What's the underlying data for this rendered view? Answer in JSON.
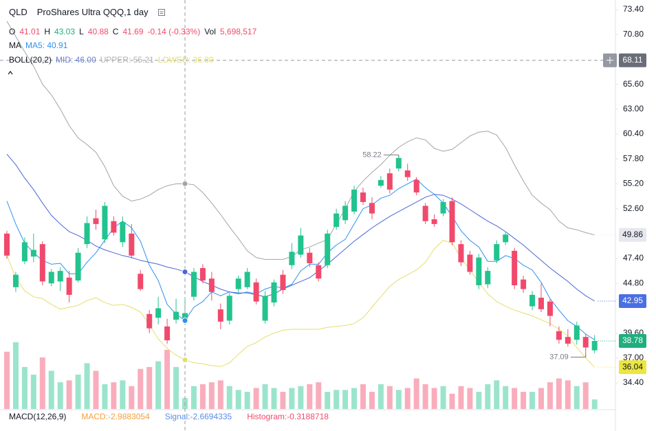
{
  "chart_data": {
    "type": "candlestick",
    "title": "QLD",
    "subtitle": "ProShares Ultra QQQ,1 day",
    "up_color": "#22c38e",
    "down_color": "#f1496b",
    "ylim": [
      31.67,
      74.41
    ],
    "yticks": [
      {
        "value": 73.4,
        "label": "73.40"
      },
      {
        "value": 70.8,
        "label": "70.80"
      },
      {
        "value": 65.6,
        "label": "65.60"
      },
      {
        "value": 63,
        "label": "63.00"
      },
      {
        "value": 60.4,
        "label": "60.40"
      },
      {
        "value": 57.8,
        "label": "57.80"
      },
      {
        "value": 55.2,
        "label": "55.20"
      },
      {
        "value": 52.6,
        "label": "52.60"
      },
      {
        "value": 47.4,
        "label": "47.40"
      },
      {
        "value": 44.8,
        "label": "44.80"
      },
      {
        "value": 39.6,
        "label": "39.60"
      },
      {
        "value": 37,
        "label": "37.00"
      },
      {
        "value": 34.4,
        "label": "34.40"
      }
    ],
    "open": [
      50.0,
      44.4,
      47.1,
      47.6,
      48.9,
      44.8,
      45.0,
      45.4,
      45.1,
      48.9,
      51.6,
      49.4,
      51.3,
      49.1,
      50.0,
      45.8,
      41.6,
      41.2,
      40.3,
      41.0,
      41.01,
      43.4,
      46.4,
      45.3,
      42.08,
      40.9,
      44.2,
      44.4,
      44.9,
      40.9,
      42.8,
      45.7,
      46.7,
      47.8,
      48.0,
      46.7,
      46.7,
      50.7,
      51.4,
      52.3,
      54.3,
      53.2,
      55.0,
      56.3,
      56.8,
      56.6,
      55.6,
      52.9,
      51.5,
      52.1,
      53.4,
      48.9,
      47.8,
      44.6,
      44.7,
      47.2,
      49.1,
      48.2,
      45.2,
      42.4,
      43.3,
      42.9,
      39.8,
      39.2,
      38.9,
      39.2,
      37.8
    ],
    "high": [
      50.3,
      46.0,
      49.6,
      50.0,
      49.2,
      46.3,
      46.5,
      46.1,
      48.5,
      51.8,
      52.5,
      53.3,
      51.8,
      51.8,
      51.0,
      46.2,
      42.0,
      43.4,
      41.1,
      43.2,
      43.03,
      46.4,
      46.8,
      46.0,
      42.7,
      43.8,
      45.6,
      46.4,
      45.3,
      44.0,
      45.2,
      46.2,
      49.0,
      50.6,
      48.5,
      47.0,
      50.4,
      52.6,
      53.4,
      55.0,
      54.8,
      53.8,
      56.0,
      56.8,
      58.22,
      57.3,
      55.9,
      53.2,
      52.0,
      53.6,
      53.8,
      49.3,
      48.2,
      47.9,
      46.5,
      49.3,
      50.2,
      48.5,
      45.6,
      44.0,
      44.8,
      43.2,
      40.3,
      40.0,
      40.8,
      39.5,
      39.4
    ],
    "low": [
      47.4,
      43.9,
      46.8,
      47.0,
      44.6,
      44.5,
      44.0,
      42.8,
      44.9,
      48.5,
      50.4,
      49.0,
      49.8,
      48.6,
      47.4,
      44.0,
      39.6,
      40.5,
      38.5,
      40.6,
      40.88,
      43.0,
      44.8,
      43.0,
      40.0,
      40.5,
      43.8,
      44.2,
      42.6,
      40.6,
      42.4,
      43.7,
      46.3,
      47.5,
      46.5,
      45.0,
      46.4,
      50.4,
      51.0,
      52.0,
      53.0,
      51.5,
      54.8,
      54.2,
      56.5,
      55.5,
      54.0,
      51.0,
      50.7,
      51.8,
      48.8,
      46.6,
      45.7,
      44.2,
      44.3,
      46.9,
      48.8,
      44.2,
      43.8,
      42.0,
      41.8,
      40.3,
      38.5,
      38.2,
      38.4,
      37.09,
      37.5
    ],
    "close": [
      47.7,
      45.7,
      49.1,
      48.3,
      45.0,
      46.0,
      46.1,
      43.6,
      48.0,
      51.1,
      51.0,
      52.9,
      50.1,
      51.2,
      47.7,
      44.2,
      40.1,
      42.2,
      38.85,
      41.83,
      41.69,
      46.0,
      45.1,
      43.9,
      40.8,
      43.5,
      45.3,
      46.0,
      42.9,
      43.5,
      44.9,
      44.1,
      48.1,
      49.8,
      46.9,
      45.3,
      50.0,
      52.1,
      52.9,
      54.6,
      53.3,
      52.1,
      55.6,
      54.6,
      57.9,
      55.9,
      54.3,
      51.3,
      51.0,
      53.3,
      49.1,
      47.0,
      46.0,
      47.5,
      46.1,
      48.9,
      49.9,
      44.6,
      44.2,
      43.6,
      42.1,
      41.4,
      38.9,
      38.5,
      40.4,
      38.1,
      38.78
    ],
    "volume": [
      30000000,
      35000000,
      22000000,
      18000000,
      27000000,
      20000000,
      14000000,
      15000000,
      18000000,
      24000000,
      20000000,
      13000000,
      14000000,
      15000000,
      12000000,
      21000000,
      22000000,
      25000000,
      31000000,
      22000000,
      5698517,
      12000000,
      13000000,
      14000000,
      15000000,
      12000000,
      10000000,
      9000000,
      11000000,
      13000000,
      11000000,
      9000000,
      11000000,
      12000000,
      13000000,
      14000000,
      9000000,
      10000000,
      10000000,
      11000000,
      13000000,
      9000000,
      13000000,
      12000000,
      10000000,
      11000000,
      16000000,
      13000000,
      11000000,
      12000000,
      8000000,
      12000000,
      11000000,
      9000000,
      13000000,
      15000000,
      12000000,
      11000000,
      9000000,
      9000000,
      11000000,
      14000000,
      16000000,
      15000000,
      12000000,
      14000000,
      5000000
    ],
    "volume_lim": [
      0,
      36000000
    ],
    "series": [
      {
        "color": "#2e8ff0",
        "values": [
          53.4,
          51.0,
          49.0,
          48.0,
          47.2,
          46.8,
          46.9,
          45.8,
          45.8,
          47.0,
          48.0,
          49.3,
          50.6,
          51.3,
          50.6,
          49.2,
          46.7,
          45.1,
          42.6,
          41.6,
          40.91,
          42.3,
          42.9,
          43.9,
          43.5,
          43.9,
          43.7,
          43.9,
          43.7,
          44.2,
          44.5,
          44.3,
          44.7,
          46.1,
          46.8,
          46.8,
          48.0,
          48.8,
          49.4,
          51.0,
          52.6,
          53.0,
          53.7,
          54.0,
          54.7,
          55.2,
          55.7,
          54.8,
          54.1,
          53.2,
          51.8,
          50.3,
          49.3,
          48.6,
          47.1,
          47.1,
          47.7,
          47.4,
          46.7,
          46.2,
          44.9,
          43.2,
          42.0,
          40.9,
          40.3,
          39.5,
          38.9
        ]
      },
      {
        "color": "#4a65d6",
        "values": [
          58.3,
          57.2,
          55.8,
          54.6,
          53.2,
          51.9,
          51.0,
          50.2,
          49.8,
          49.3,
          48.7,
          48.3,
          48.0,
          47.7,
          47.5,
          47.2,
          47.0,
          46.8,
          46.5,
          46.3,
          46.0,
          45.5,
          45.0,
          44.6,
          44.2,
          43.9,
          43.8,
          43.8,
          43.6,
          43.4,
          43.7,
          44.2,
          44.6,
          45.0,
          45.4,
          46.1,
          46.8,
          47.6,
          48.4,
          49.2,
          49.9,
          50.6,
          51.2,
          51.8,
          52.3,
          52.8,
          53.3,
          53.8,
          54.1,
          54.0,
          53.6,
          53.1,
          52.5,
          51.9,
          51.3,
          50.8,
          50.2,
          49.5,
          48.8,
          48.0,
          47.2,
          46.4,
          45.7,
          45.0,
          44.2,
          43.5,
          42.95
        ]
      },
      {
        "color": "#a3a3a3",
        "values": [
          72.2,
          70.6,
          69.0,
          67.5,
          65.6,
          64.5,
          63.0,
          61.3,
          60.0,
          59.3,
          58.5,
          57.0,
          55.0,
          53.9,
          53.4,
          53.6,
          54.0,
          54.6,
          55.0,
          55.2,
          55.21,
          55.1,
          54.3,
          53.2,
          52.0,
          50.7,
          49.5,
          48.2,
          47.5,
          47.3,
          47.3,
          47.3,
          47.6,
          48.3,
          48.6,
          49.0,
          49.4,
          51.0,
          52.6,
          54.4,
          55.5,
          56.4,
          57.2,
          58.2,
          59.0,
          59.6,
          60.0,
          59.8,
          58.9,
          58.6,
          58.8,
          59.5,
          60.2,
          60.6,
          60.7,
          60.3,
          59.0,
          57.2,
          55.5,
          54.0,
          53.2,
          52.5,
          51.3,
          50.6,
          50.4,
          50.1,
          49.86
        ]
      },
      {
        "color": "#e4de6c",
        "values": [
          47.7,
          45.4,
          44.0,
          43.4,
          43.2,
          42.6,
          42.1,
          42.3,
          42.5,
          43.0,
          43.3,
          42.8,
          42.5,
          42.6,
          42.3,
          41.8,
          40.5,
          39.0,
          38.0,
          37.3,
          36.8,
          36.5,
          36.4,
          36.2,
          36.1,
          36.5,
          37.4,
          38.2,
          38.6,
          39.2,
          39.6,
          39.9,
          40.0,
          40.0,
          40.0,
          40.0,
          40.2,
          40.3,
          40.4,
          40.6,
          41.2,
          42.3,
          43.4,
          44.5,
          45.2,
          45.7,
          46.2,
          47.0,
          48.4,
          49.3,
          49.0,
          47.5,
          46.2,
          44.9,
          43.7,
          42.9,
          42.4,
          42.0,
          41.7,
          41.4,
          41.0,
          40.6,
          40.0,
          39.3,
          38.1,
          37.0,
          36.04
        ]
      }
    ],
    "crosshair_price": 68.11,
    "markers": [
      {
        "value": 49.86,
        "background": "#e6e8ee",
        "color": "#131722"
      },
      {
        "value": 42.95,
        "background": "#4a6fe3",
        "color": "#ffffff"
      },
      {
        "value": 38.78,
        "background": "#1fae7e",
        "color": "#ffffff"
      },
      {
        "value": 36.04,
        "background": "#ebe640",
        "color": "#131722"
      }
    ],
    "legend_rows": [
      [
        {
          "text": "O",
          "color": "#131722"
        },
        {
          "text": "41.01",
          "color": "#f1496b"
        },
        {
          "text": "H",
          "color": "#131722"
        },
        {
          "text": "43.03",
          "color": "#1fae7e"
        },
        {
          "text": "L",
          "color": "#131722"
        },
        {
          "text": "40.88",
          "color": "#f1496b"
        },
        {
          "text": "C",
          "color": "#131722"
        },
        {
          "text": "41.69",
          "color": "#f1496b"
        },
        {
          "text": "-0.14 (-0.33%)",
          "color": "#f1496b"
        },
        {
          "text": "Vol",
          "color": "#131722"
        },
        {
          "text": "5,698,517",
          "color": "#f1496b"
        }
      ],
      [
        {
          "text": "MA",
          "color": "#131722"
        },
        {
          "text": "MA5: 40.91",
          "color": "#2e8ff0"
        }
      ],
      [
        {
          "text": "BOLL(20,2)",
          "color": "#131722"
        },
        {
          "text": "MID: 46.00",
          "color": "#6b7fd6"
        },
        {
          "text": "UPPER: 55.21",
          "color": "#b0b0b0"
        },
        {
          "text": "LOWER: 36.80",
          "color": "#e4de6c"
        }
      ]
    ],
    "macd_legend": [
      {
        "text": "MACD(12,26,9)",
        "color": "#131722"
      },
      {
        "text": "MACD:-2.9883054",
        "color": "#f5a03a"
      },
      {
        "text": "Signal:-2.6694335",
        "color": "#5b8de6"
      },
      {
        "text": "Histogram:-0.3188718",
        "color": "#f1496b"
      }
    ]
  }
}
